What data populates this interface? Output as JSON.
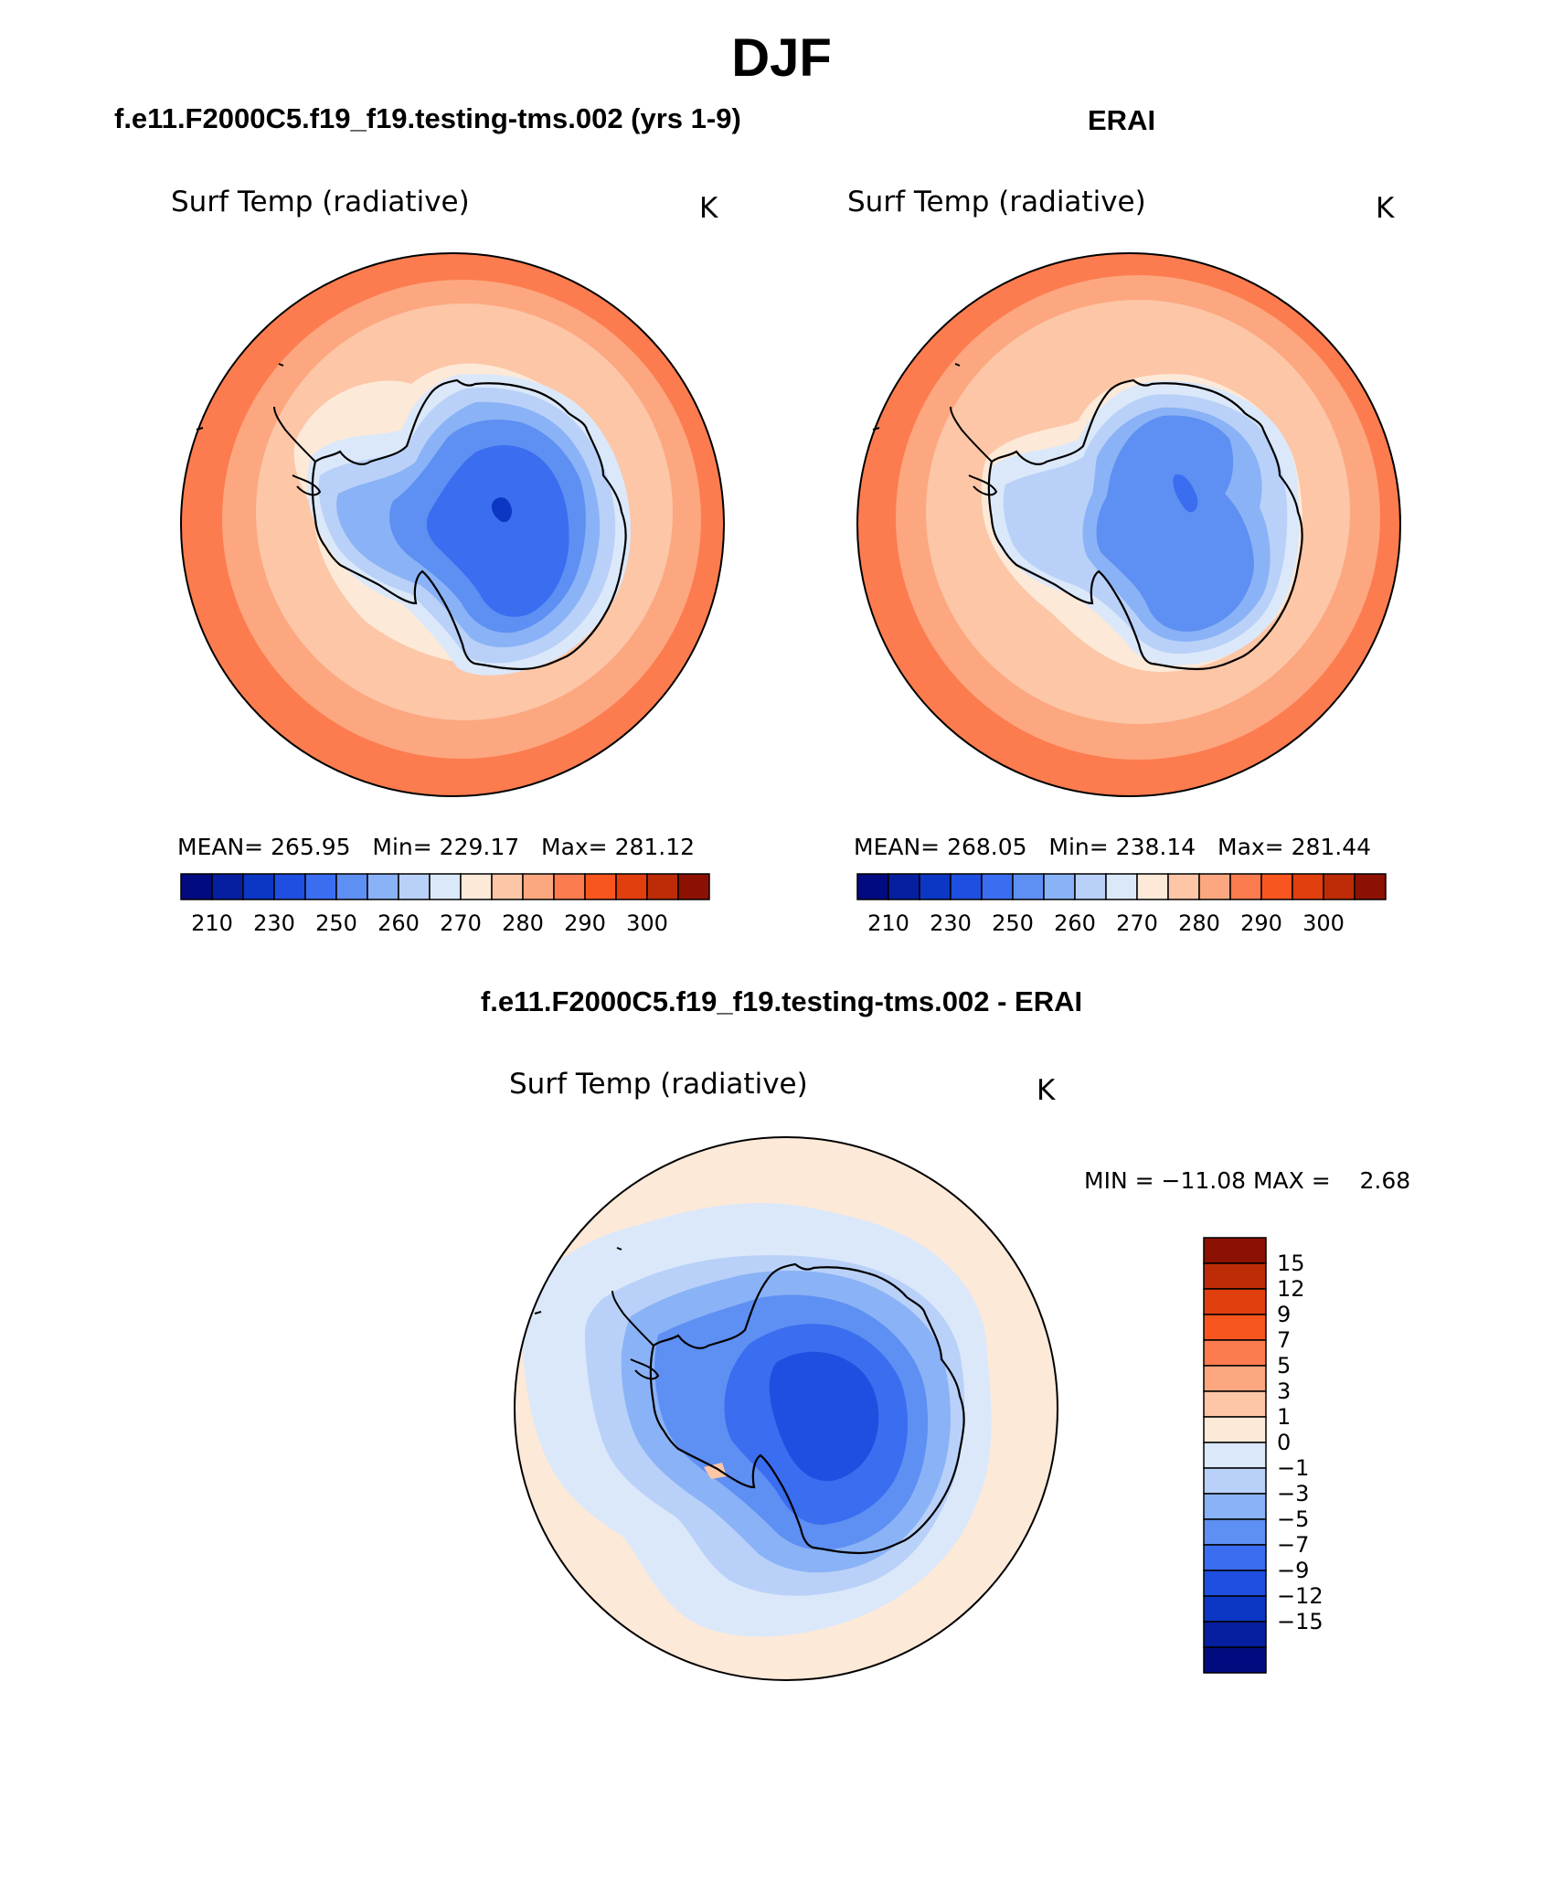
{
  "title": "DJF",
  "colors": {
    "pos": [
      "#fde9d8",
      "#fcc6a7",
      "#fca77f",
      "#fc7c4f",
      "#f8561e",
      "#e23f0f",
      "#bd2c06",
      "#8c1103"
    ],
    "neg": [
      "#dbe8fa",
      "#b9d1f8",
      "#8ab2f6",
      "#5e8ff2",
      "#3a6df0",
      "#1e4fe0",
      "#0b37c4",
      "#061fa0",
      "#020a80"
    ]
  },
  "panels": [
    {
      "heading": "f.e11.F2000C5.f19_f19.testing-tms.002 (yrs 1-9)",
      "variable": "Surf Temp (radiative)",
      "units": "K",
      "stats": {
        "mean_label": "MEAN=",
        "mean": "265.95",
        "min_label": "Min=",
        "min": "229.17",
        "max_label": "Max=",
        "max": "281.12"
      },
      "colorbar_ticks": [
        "210",
        "230",
        "250",
        "260",
        "270",
        "280",
        "290",
        "300"
      ]
    },
    {
      "heading": "ERAI",
      "variable": "Surf Temp (radiative)",
      "units": "K",
      "stats": {
        "mean_label": "MEAN=",
        "mean": "268.05",
        "min_label": "Min=",
        "min": "238.14",
        "max_label": "Max=",
        "max": "281.44"
      },
      "colorbar_ticks": [
        "210",
        "230",
        "250",
        "260",
        "270",
        "280",
        "290",
        "300"
      ]
    },
    {
      "heading": "f.e11.F2000C5.f19_f19.testing-tms.002 - ERAI",
      "variable": "Surf Temp (radiative)",
      "units": "K",
      "stats": {
        "min_label": "MIN =",
        "min": "−11.08",
        "max_label": "MAX =",
        "max": "2.68"
      },
      "colorbar_ticks": [
        "15",
        "12",
        "9",
        "7",
        "5",
        "3",
        "1",
        "0",
        "−1",
        "−3",
        "−5",
        "−7",
        "−9",
        "−12",
        "−15"
      ]
    }
  ],
  "chart_data": [
    {
      "type": "heatmap",
      "projection": "south polar stereographic",
      "title": "f.e11.F2000C5.f19_f19.testing-tms.002 (yrs 1-9)",
      "variable": "Surf Temp (radiative)",
      "units": "K",
      "mean": 265.95,
      "min": 229.17,
      "max": 281.12,
      "levels": [
        210,
        220,
        230,
        240,
        250,
        255,
        260,
        265,
        270,
        275,
        280,
        285,
        290,
        295,
        300
      ]
    },
    {
      "type": "heatmap",
      "projection": "south polar stereographic",
      "title": "ERAI",
      "variable": "Surf Temp (radiative)",
      "units": "K",
      "mean": 268.05,
      "min": 238.14,
      "max": 281.44,
      "levels": [
        210,
        220,
        230,
        240,
        250,
        255,
        260,
        265,
        270,
        275,
        280,
        285,
        290,
        295,
        300
      ]
    },
    {
      "type": "heatmap",
      "projection": "south polar stereographic",
      "title": "f.e11.F2000C5.f19_f19.testing-tms.002 - ERAI",
      "variable": "Surf Temp (radiative)",
      "units": "K",
      "min": -11.08,
      "max": 2.68,
      "levels": [
        -15,
        -12,
        -9,
        -7,
        -5,
        -3,
        -1,
        0,
        1,
        3,
        5,
        7,
        9,
        12,
        15
      ]
    }
  ]
}
